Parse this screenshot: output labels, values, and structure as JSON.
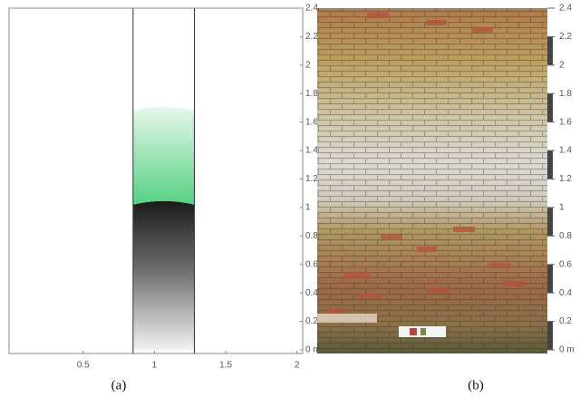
{
  "chart_data": [
    {
      "type": "column-diagram",
      "caption": "(a)",
      "xlim": [
        -0.02,
        2.04
      ],
      "ylim": [
        0,
        2.4
      ],
      "xticks": [
        0.5,
        1,
        1.5,
        2
      ],
      "yticks": [
        {
          "value": 0,
          "label": "0 m"
        },
        0.2,
        0.4,
        0.6,
        0.8,
        1,
        1.2,
        1.4,
        1.6,
        1.8,
        2,
        2.2,
        2.4
      ],
      "column_x": [
        0.85,
        1.28
      ],
      "zones": [
        {
          "bottom": 0,
          "top": 1.02,
          "color": "#1c1c1c"
        },
        {
          "bottom": 1.02,
          "top": 1.68,
          "color": "#55d182"
        }
      ]
    },
    {
      "type": "photo",
      "caption": "(b)",
      "ylim": [
        0,
        2.4
      ],
      "yticks": [
        {
          "value": 0,
          "label": "0 m"
        },
        0.2,
        0.4,
        0.6,
        0.8,
        1,
        1.2,
        1.4,
        1.6,
        1.8,
        2,
        2.2,
        2.4
      ]
    }
  ]
}
